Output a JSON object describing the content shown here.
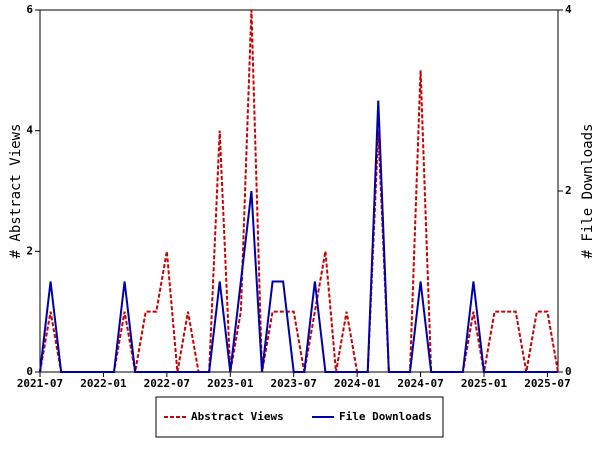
{
  "chart_data": {
    "type": "line",
    "categories": [
      "2021-07",
      null,
      null,
      null,
      null,
      null,
      "2022-01",
      null,
      null,
      null,
      null,
      null,
      "2022-07",
      null,
      null,
      null,
      null,
      null,
      "2023-01",
      null,
      null,
      null,
      null,
      null,
      "2023-07",
      null,
      null,
      null,
      null,
      null,
      "2024-01",
      null,
      null,
      null,
      null,
      null,
      "2024-07",
      null,
      null,
      null,
      null,
      null,
      "2025-01",
      null,
      null,
      null,
      null,
      null,
      "2025-07",
      null
    ],
    "series": [
      {
        "name": "Abstract Views",
        "color": "#cc0000",
        "dash": true,
        "axis": "y",
        "values": [
          0,
          1,
          0,
          0,
          0,
          0,
          0,
          0,
          1,
          0,
          1,
          1,
          2,
          0,
          1,
          0,
          0,
          4,
          0,
          1,
          6,
          0,
          1,
          1,
          1,
          0,
          1,
          2,
          0,
          1,
          0,
          0,
          4,
          0,
          0,
          0,
          5,
          0,
          0,
          0,
          0,
          1,
          0,
          1,
          1,
          1,
          0,
          1,
          1,
          0
        ]
      },
      {
        "name": "File Downloads",
        "color": "#0000aa",
        "dash": false,
        "axis": "y2",
        "values": [
          0,
          1,
          0,
          0,
          0,
          0,
          0,
          0,
          1,
          0,
          0,
          0,
          0,
          0,
          0,
          0,
          0,
          1,
          0,
          1,
          2,
          0,
          1,
          1,
          0,
          0,
          1,
          0,
          0,
          0,
          0,
          0,
          3,
          0,
          0,
          0,
          1,
          0,
          0,
          0,
          0,
          1,
          0,
          0,
          0,
          0,
          0,
          0,
          0,
          0
        ]
      }
    ],
    "ylabel": "# Abstract Views",
    "y2label": "# File Downloads",
    "ylim": [
      0,
      6
    ],
    "yticks": [
      0,
      2,
      4,
      6
    ],
    "y2lim": [
      0,
      4
    ],
    "y2ticks": [
      0,
      2,
      4
    ],
    "legend": "bottom"
  }
}
